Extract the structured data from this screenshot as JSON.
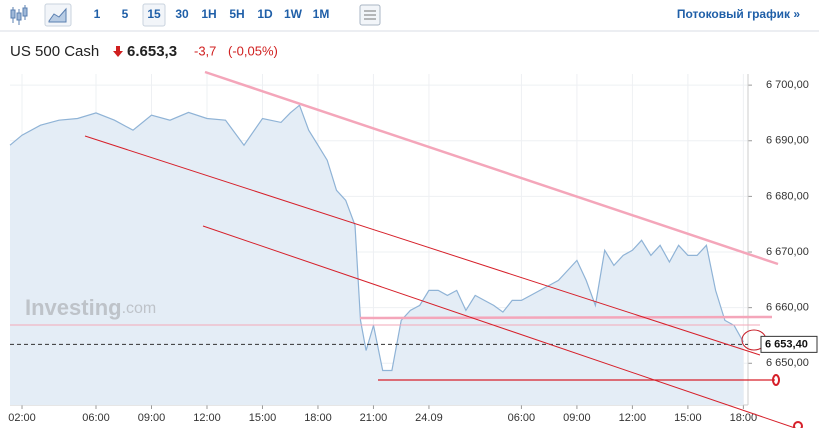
{
  "toolbar": {
    "intervals": [
      "1",
      "5",
      "15",
      "30",
      "1H",
      "5H",
      "1D",
      "1W",
      "1M"
    ],
    "streaming_link": "Потоковый график »"
  },
  "header": {
    "instrument": "US 500 Cash",
    "price": "6.653,3",
    "change": "-3,7",
    "change_percent": "(-0,05%)"
  },
  "watermark": {
    "brand": "Investing",
    "suffix": ".com"
  },
  "chart_data": {
    "type": "area",
    "color": "#8fb3d6",
    "fill": "#e4edf6",
    "grid": true,
    "x": [
      1.35,
      2,
      3,
      4,
      5,
      6,
      7,
      8,
      9,
      10,
      11,
      12,
      13,
      14,
      15,
      16,
      16.5,
      17,
      17.5,
      18,
      18.5,
      19,
      19.5,
      20,
      20.3,
      20.6,
      21,
      21.5,
      22,
      22.5,
      23,
      23.5,
      24,
      24.5,
      25,
      25.5,
      26,
      26.5,
      27,
      27.5,
      28,
      28.5,
      29,
      29.5,
      30,
      30.5,
      31,
      31.5,
      32,
      32.5,
      33,
      33.5,
      34,
      34.5,
      35,
      35.5,
      36,
      36.5,
      37,
      37.5,
      38,
      38.5,
      39,
      39.5,
      40,
      40.5,
      41
    ],
    "values": [
      6689.2,
      6691,
      6692.8,
      6693.7,
      6694,
      6695,
      6693.7,
      6691.9,
      6694.6,
      6693.7,
      6695.1,
      6694,
      6693.7,
      6689.2,
      6694,
      6693.3,
      6695,
      6696.4,
      6691.9,
      6689.2,
      6686.5,
      6681.1,
      6679.3,
      6674.8,
      6657.7,
      6652.3,
      6656.8,
      6648.7,
      6648.7,
      6657.7,
      6659.5,
      6660.4,
      6663.1,
      6663.1,
      6662.2,
      6663.1,
      6659.5,
      6662.2,
      6661.3,
      6660.4,
      6659.2,
      6661.3,
      6661.3,
      6662.2,
      6663.1,
      6664,
      6664.9,
      6666.7,
      6668.5,
      6664.9,
      6660.4,
      6670.3,
      6667.6,
      6669.4,
      6670.3,
      6672.1,
      6669.4,
      6671.2,
      6668.2,
      6671.2,
      6669.4,
      6669.4,
      6671.2,
      6663.1,
      6657.7,
      6656.8,
      6653.8
    ],
    "xlim": [
      1.35,
      41.25
    ],
    "xticks": [
      {
        "value": 2,
        "label": "02:00"
      },
      {
        "value": 6,
        "label": "06:00"
      },
      {
        "value": 9,
        "label": "09:00"
      },
      {
        "value": 12,
        "label": "12:00"
      },
      {
        "value": 15,
        "label": "15:00"
      },
      {
        "value": 18,
        "label": "18:00"
      },
      {
        "value": 21,
        "label": "21:00"
      },
      {
        "value": 24,
        "label": "24.09"
      },
      {
        "value": 29,
        "label": "06:00"
      },
      {
        "value": 32,
        "label": "09:00"
      },
      {
        "value": 35,
        "label": "12:00"
      },
      {
        "value": 38,
        "label": "15:00"
      },
      {
        "value": 41,
        "label": "18:00"
      }
    ],
    "ylim": [
      6642.5,
      6702
    ],
    "yticks": [
      {
        "value": 6650,
        "label": "6 650,00"
      },
      {
        "value": 6660,
        "label": "6 660,00"
      },
      {
        "value": 6670,
        "label": "6 670,00"
      },
      {
        "value": 6680,
        "label": "6 680,00"
      },
      {
        "value": 6690,
        "label": "6 690,00"
      },
      {
        "value": 6700,
        "label": "6 700,00"
      }
    ],
    "last_price": {
      "value": 6653.4,
      "label": "6 653,40"
    }
  }
}
